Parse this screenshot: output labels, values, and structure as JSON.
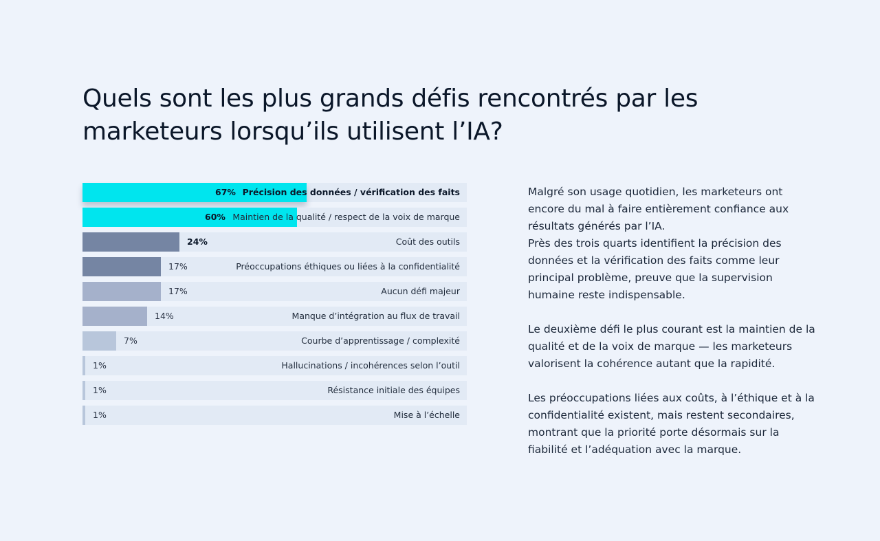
{
  "title": "Quels sont les plus grands défis rencontrés par les marketeurs lorsqu’ils utilisent l’IA?",
  "chart_data": {
    "type": "bar",
    "orientation": "horizontal",
    "title": "Quels sont les plus grands défis rencontrés par les marketeurs lorsqu’ils utilisent l’IA?",
    "categories": [
      "Précision des données / vérification des faits",
      "Maintien de la qualité / respect de la voix de marque",
      "Coût des outils",
      "Préoccupations éthiques ou liées à la confidentialité",
      "Aucun défi majeur",
      "Manque d’intégration au flux de travail",
      "Courbe d’apprentissage / complexité",
      "Hallucinations / incohérences selon l’outil",
      "Résistance initiale des équipes",
      "Mise à l’échelle"
    ],
    "values": [
      67,
      60,
      24,
      17,
      17,
      14,
      7,
      1,
      1,
      1
    ],
    "value_labels": [
      "67%",
      "60%",
      "24%",
      "17%",
      "17%",
      "14%",
      "7%",
      "1%",
      "1%",
      "1%"
    ],
    "bar_colors": [
      "#00e5ee",
      "#00e5ee",
      "#7585a3",
      "#7585a3",
      "#a5b1cb",
      "#a5b1cb",
      "#b8c6db",
      "#b8c6db",
      "#b8c6db",
      "#b8c6db"
    ],
    "track_color": "#e2eaf5",
    "xlabel": "",
    "ylabel": "",
    "grid": false
  },
  "side_text": [
    "Malgré son usage quotidien, les marketeurs ont encore du mal à faire entièrement confiance aux résultats générés par l’IA.\nPrès des trois quarts identifient la précision des données et la vérification des faits comme leur principal problème, preuve que la supervision humaine reste indispensable.",
    "Le deuxième défi le plus courant est la maintien de la qualité et de la voix de marque — les marketeurs valorisent la cohérence autant que la rapidité.",
    "Les préoccupations liées aux coûts, à l’éthique et à la confidentialité existent, mais restent secondaires, montrant que la priorité porte désormais sur la fiabilité et l’adéquation avec la marque."
  ]
}
